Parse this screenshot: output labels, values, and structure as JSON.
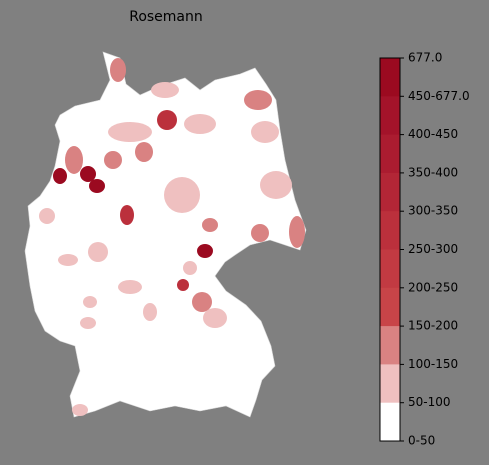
{
  "title": "Rosemann",
  "legend": {
    "labels": [
      "677.0",
      "450-677.0",
      "400-450",
      "350-400",
      "300-350",
      "250-300",
      "200-250",
      "150-200",
      "100-150",
      "50-100",
      "0-50"
    ],
    "colors": [
      "#9b0a20",
      "#a3132a",
      "#ab1c30",
      "#b32636",
      "#bb303c",
      "#c23a42",
      "#c84448",
      "#d98282",
      "#efc0c0",
      "#ffffff"
    ]
  }
}
